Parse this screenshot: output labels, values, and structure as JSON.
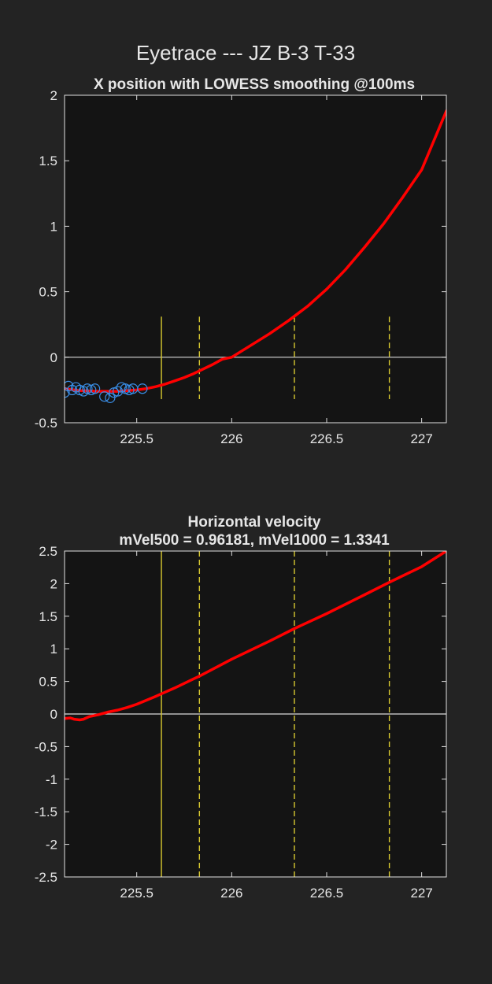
{
  "figure": {
    "title": "Eyetrace --- JZ B-3 T-33",
    "background": "#232323",
    "axes_background": "#141414",
    "trace_color": "#ff0000",
    "marker_color": "#3a8ee6",
    "marker_line_color": "#d8c930",
    "zero_line_color": "#d9d9d9"
  },
  "chart_data": [
    {
      "type": "line",
      "title": "X position with LOWESS smoothing @100ms",
      "xlim": [
        225.12,
        227.13
      ],
      "ylim": [
        -0.5,
        2
      ],
      "x_ticks": [
        225.5,
        226,
        226.5,
        227
      ],
      "x_tick_labels": [
        "225.5",
        "226",
        "226.5",
        "227"
      ],
      "y_ticks": [
        -0.5,
        0,
        0.5,
        1,
        1.5,
        2
      ],
      "y_tick_labels": [
        "-0.5",
        "0",
        "0.5",
        "1",
        "1.5",
        "2"
      ],
      "zero_line": 0,
      "event_lines": [
        {
          "x": 225.63,
          "style": "solid",
          "ymin": -0.32,
          "ymax": 0.31
        },
        {
          "x": 225.83,
          "style": "dashed",
          "ymin": -0.32,
          "ymax": 0.31
        },
        {
          "x": 226.33,
          "style": "dashed",
          "ymin": -0.32,
          "ymax": 0.31
        },
        {
          "x": 226.83,
          "style": "dashed",
          "ymin": -0.32,
          "ymax": 0.31
        }
      ],
      "series": [
        {
          "kind": "line",
          "x": [
            225.12,
            225.2,
            225.3,
            225.4,
            225.5,
            225.55,
            225.6,
            225.65,
            225.7,
            225.75,
            225.8,
            225.85,
            225.9,
            225.95,
            226.0,
            226.1,
            226.2,
            226.3,
            226.4,
            226.5,
            226.6,
            226.7,
            226.8,
            226.9,
            227.0,
            227.13
          ],
          "y": [
            -0.24,
            -0.255,
            -0.26,
            -0.26,
            -0.25,
            -0.24,
            -0.225,
            -0.205,
            -0.18,
            -0.155,
            -0.125,
            -0.09,
            -0.055,
            -0.015,
            0.0,
            0.09,
            0.18,
            0.28,
            0.39,
            0.52,
            0.67,
            0.84,
            1.02,
            1.22,
            1.43,
            1.88
          ]
        },
        {
          "kind": "scatter",
          "x": [
            225.12,
            225.14,
            225.16,
            225.18,
            225.2,
            225.22,
            225.24,
            225.26,
            225.28,
            225.33,
            225.36,
            225.38,
            225.4,
            225.42,
            225.44,
            225.46,
            225.48,
            225.53
          ],
          "y": [
            -0.27,
            -0.22,
            -0.25,
            -0.23,
            -0.25,
            -0.26,
            -0.24,
            -0.25,
            -0.24,
            -0.3,
            -0.31,
            -0.27,
            -0.26,
            -0.23,
            -0.24,
            -0.25,
            -0.24,
            -0.24
          ]
        }
      ]
    },
    {
      "type": "line",
      "title": "Horizontal velocity",
      "subtitle": "mVel500 = 0.96181, mVel1000 = 1.3341",
      "xlim": [
        225.12,
        227.13
      ],
      "ylim": [
        -2.5,
        2.5
      ],
      "x_ticks": [
        225.5,
        226,
        226.5,
        227
      ],
      "x_tick_labels": [
        "225.5",
        "226",
        "226.5",
        "227"
      ],
      "y_ticks": [
        -2.5,
        -2,
        -1.5,
        -1,
        -0.5,
        0,
        0.5,
        1,
        1.5,
        2,
        2.5
      ],
      "y_tick_labels": [
        "-2.5",
        "-2",
        "-1.5",
        "-1",
        "-0.5",
        "0",
        "0.5",
        "1",
        "1.5",
        "2",
        "2.5"
      ],
      "zero_line": 0,
      "event_lines": [
        {
          "x": 225.63,
          "style": "solid",
          "ymin": -2.5,
          "ymax": 2.5
        },
        {
          "x": 225.83,
          "style": "dashed",
          "ymin": -2.5,
          "ymax": 2.5
        },
        {
          "x": 226.33,
          "style": "dashed",
          "ymin": -2.5,
          "ymax": 2.5
        },
        {
          "x": 226.83,
          "style": "dashed",
          "ymin": -2.5,
          "ymax": 2.5
        }
      ],
      "series": [
        {
          "kind": "line",
          "x": [
            225.12,
            225.15,
            225.17,
            225.2,
            225.22,
            225.25,
            225.3,
            225.35,
            225.4,
            225.45,
            225.5,
            225.55,
            225.6,
            225.63,
            225.7,
            225.8,
            225.83,
            226.0,
            226.2,
            226.33,
            226.5,
            226.7,
            226.83,
            227.0,
            227.13
          ],
          "y": [
            -0.07,
            -0.06,
            -0.08,
            -0.09,
            -0.08,
            -0.04,
            -0.01,
            0.03,
            0.06,
            0.1,
            0.15,
            0.21,
            0.27,
            0.31,
            0.4,
            0.54,
            0.58,
            0.84,
            1.12,
            1.31,
            1.54,
            1.83,
            2.02,
            2.26,
            2.5
          ]
        }
      ]
    }
  ]
}
